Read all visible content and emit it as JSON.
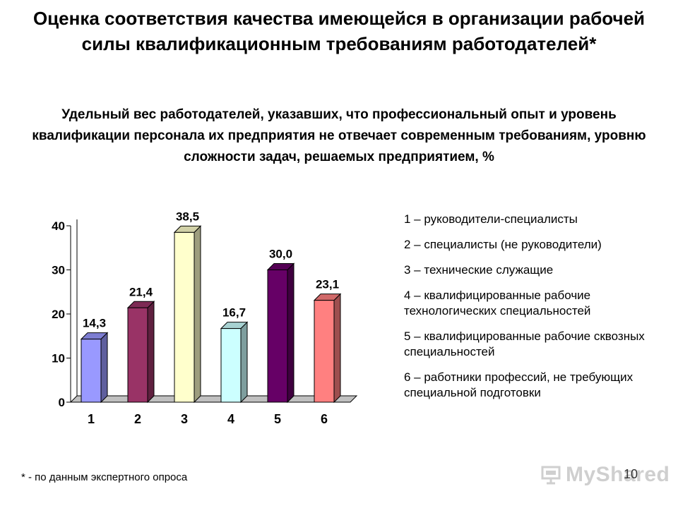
{
  "slide": {
    "title": "Оценка соответствия качества имеющейся в организации рабочей силы квалификационным требованиям работодателей*",
    "subtitle": "Удельный вес работодателей, указавших, что профессиональный опыт и уровень квалификации персонала их предприятия не отвечает современным требованиям, уровню сложности задач, решаемых предприятием, %",
    "footnote": "* - по данным экспертного опроса",
    "page_number": "10",
    "watermark": "MyShared"
  },
  "legend": [
    "1 – руководители-специалисты",
    "2 – специалисты (не руководители)",
    "3 – технические служащие",
    "4 – квалифицированные рабочие технологических специальностей",
    "5 – квалифицированные рабочие сквозных специальностей",
    "6 – работники профессий, не требующих специальной подготовки"
  ],
  "chart_data": {
    "type": "bar",
    "categories": [
      "1",
      "2",
      "3",
      "4",
      "5",
      "6"
    ],
    "values": [
      14.3,
      21.4,
      38.5,
      16.7,
      30.0,
      23.1
    ],
    "value_labels": [
      "14,3",
      "21,4",
      "38,5",
      "16,7",
      "30,0",
      "23,1"
    ],
    "colors": [
      "#9999ff",
      "#993366",
      "#ffffcc",
      "#ccffff",
      "#660066",
      "#ff8080"
    ],
    "yticks": [
      "0",
      "10",
      "20",
      "30",
      "40"
    ],
    "ylim": [
      0,
      40
    ],
    "grid": false,
    "legend_position": "right"
  }
}
